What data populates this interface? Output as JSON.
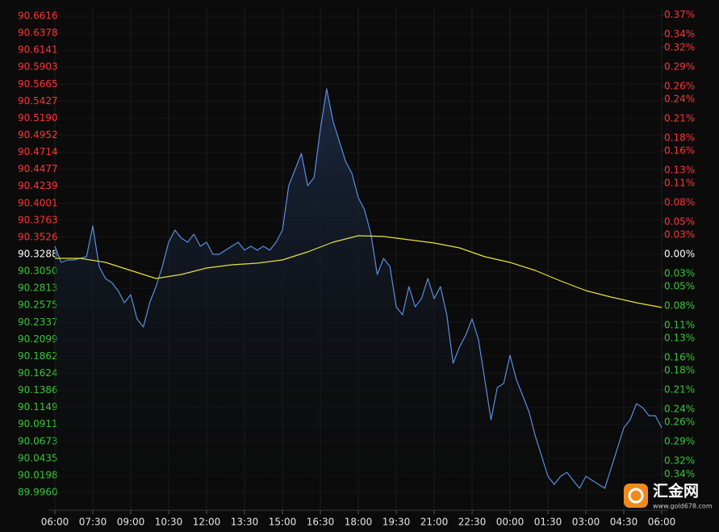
{
  "chart_data": {
    "type": "line",
    "xlim": [
      0,
      1440
    ],
    "xticks": [
      {
        "value": 0,
        "label": "06:00"
      },
      {
        "value": 90,
        "label": "07:30"
      },
      {
        "value": 180,
        "label": "09:00"
      },
      {
        "value": 270,
        "label": "10:30"
      },
      {
        "value": 360,
        "label": "12:00"
      },
      {
        "value": 450,
        "label": "13:30"
      },
      {
        "value": 540,
        "label": "15:00"
      },
      {
        "value": 630,
        "label": "16:30"
      },
      {
        "value": 720,
        "label": "18:00"
      },
      {
        "value": 810,
        "label": "19:30"
      },
      {
        "value": 900,
        "label": "21:00"
      },
      {
        "value": 990,
        "label": "22:30"
      },
      {
        "value": 1080,
        "label": "00:00"
      },
      {
        "value": 1170,
        "label": "01:30"
      },
      {
        "value": 1260,
        "label": "03:00"
      },
      {
        "value": 1350,
        "label": "04:30"
      },
      {
        "value": 1440,
        "label": "06:00"
      }
    ],
    "ylim": [
      89.996,
      90.6616
    ],
    "yticks": [
      90.6616,
      90.6378,
      90.6141,
      90.5903,
      90.5665,
      90.5427,
      {
        "value": 90.519,
        "label": "90.5190"
      },
      90.4952,
      90.4714,
      90.4477,
      90.4239,
      90.4001,
      90.3763,
      90.3526,
      90.3288,
      {
        "value": 90.305,
        "label": "90.3050"
      },
      90.2813,
      90.2575,
      90.2337,
      90.2099,
      90.1862,
      90.1624,
      90.1386,
      90.1149,
      90.0911,
      90.0673,
      90.0435,
      90.0198,
      {
        "value": 89.996,
        "label": "89.9960"
      }
    ],
    "y2lim": [
      -0.3684,
      0.3684
    ],
    "y2ticks": [
      {
        "value": 0.37,
        "label": "0.37%"
      },
      {
        "value": 0.34,
        "label": "0.34%"
      },
      {
        "value": 0.32,
        "label": "0.32%"
      },
      {
        "value": 0.29,
        "label": "0.29%"
      },
      {
        "value": 0.26,
        "label": "0.26%"
      },
      {
        "value": 0.24,
        "label": "0.24%"
      },
      {
        "value": 0.21,
        "label": "0.21%"
      },
      {
        "value": 0.18,
        "label": "0.18%"
      },
      {
        "value": 0.16,
        "label": "0.16%"
      },
      {
        "value": 0.13,
        "label": "0.13%"
      },
      {
        "value": 0.11,
        "label": "0.11%"
      },
      {
        "value": 0.08,
        "label": "0.08%"
      },
      {
        "value": 0.05,
        "label": "0.05%"
      },
      {
        "value": 0.03,
        "label": "0.03%"
      },
      {
        "value": 0,
        "label": "0.00%"
      },
      {
        "value": -0.03,
        "label": "0.03%"
      },
      {
        "value": -0.05,
        "label": "0.05%"
      },
      {
        "value": -0.08,
        "label": "0.08%"
      },
      {
        "value": -0.11,
        "label": "0.11%"
      },
      {
        "value": -0.13,
        "label": "0.13%"
      },
      {
        "value": -0.16,
        "label": "0.16%"
      },
      {
        "value": -0.18,
        "label": "0.18%"
      },
      {
        "value": -0.21,
        "label": "0.21%"
      },
      {
        "value": -0.24,
        "label": "0.24%"
      },
      {
        "value": -0.26,
        "label": "0.26%"
      },
      {
        "value": -0.29,
        "label": "0.29%"
      },
      {
        "value": -0.32,
        "label": "0.32%"
      },
      {
        "value": -0.34,
        "label": "0.34%"
      }
    ],
    "base_value": 90.3288,
    "up_color": "#ff3434",
    "down_color": "#34c834",
    "neutral_color": "#ffffff",
    "grid": true,
    "series": [
      {
        "color": "#5b8ee0",
        "area": true,
        "x": [
          0,
          15,
          30,
          45,
          60,
          75,
          90,
          105,
          120,
          135,
          150,
          165,
          180,
          195,
          210,
          225,
          240,
          255,
          270,
          285,
          300,
          315,
          330,
          345,
          360,
          375,
          390,
          405,
          420,
          435,
          450,
          465,
          480,
          495,
          510,
          525,
          540,
          555,
          570,
          585,
          600,
          615,
          630,
          645,
          660,
          675,
          690,
          705,
          720,
          735,
          750,
          765,
          780,
          795,
          810,
          825,
          840,
          855,
          870,
          885,
          900,
          915,
          930,
          945,
          960,
          975,
          990,
          1005,
          1020,
          1035,
          1050,
          1065,
          1080,
          1095,
          1110,
          1125,
          1140,
          1155,
          1170,
          1185,
          1200,
          1215,
          1230,
          1245,
          1260,
          1275,
          1290,
          1305,
          1320,
          1335,
          1350,
          1365,
          1380,
          1395,
          1410,
          1425,
          1440
        ],
        "values": [
          90.3401,
          90.3175,
          90.3209,
          90.3209,
          90.3232,
          90.3254,
          90.3683,
          90.3119,
          90.295,
          90.2893,
          90.278,
          90.2611,
          90.2724,
          90.2386,
          90.2273,
          90.2611,
          90.2837,
          90.3119,
          90.3457,
          90.3627,
          90.3514,
          90.3457,
          90.357,
          90.3401,
          90.3457,
          90.3288,
          90.3288,
          90.3345,
          90.3401,
          90.3457,
          90.3345,
          90.3401,
          90.3345,
          90.3401,
          90.3345,
          90.3457,
          90.3627,
          90.4247,
          90.4473,
          90.4698,
          90.4247,
          90.436,
          90.5037,
          90.5601,
          90.5149,
          90.4867,
          90.4585,
          90.4416,
          90.4078,
          90.3909,
          90.357,
          90.3006,
          90.3232,
          90.3119,
          90.2555,
          90.2442,
          90.2837,
          90.2555,
          90.2668,
          90.295,
          90.2668,
          90.2837,
          90.2442,
          90.1765,
          90.1991,
          90.216,
          90.2386,
          90.2104,
          90.154,
          90.0975,
          90.1427,
          90.1483,
          90.1878,
          90.154,
          90.1314,
          90.1088,
          90.075,
          90.0468,
          90.0186,
          90.0073,
          90.0186,
          90.0242,
          90.0129,
          90.0017,
          90.0186,
          90.0129,
          90.0073,
          90.0017,
          90.0299,
          90.0581,
          90.0863,
          90.0975,
          90.1201,
          90.1145,
          90.1032,
          90.1032,
          90.0863
        ]
      },
      {
        "color": "#e8e23a",
        "area": false,
        "x": [
          0,
          60,
          120,
          180,
          240,
          300,
          360,
          420,
          480,
          540,
          600,
          660,
          720,
          780,
          840,
          900,
          960,
          1020,
          1080,
          1140,
          1200,
          1260,
          1320,
          1380,
          1440
        ],
        "values": [
          90.3232,
          90.3232,
          90.3175,
          90.3062,
          90.295,
          90.3006,
          90.3096,
          90.3141,
          90.3164,
          90.3209,
          90.3322,
          90.3457,
          90.3548,
          90.3537,
          90.3491,
          90.3446,
          90.3378,
          90.3254,
          90.3175,
          90.3062,
          90.2916,
          90.278,
          90.269,
          90.2611,
          90.2544
        ]
      }
    ]
  },
  "watermark": {
    "name": "汇金网",
    "url": "www.gold678.com"
  }
}
